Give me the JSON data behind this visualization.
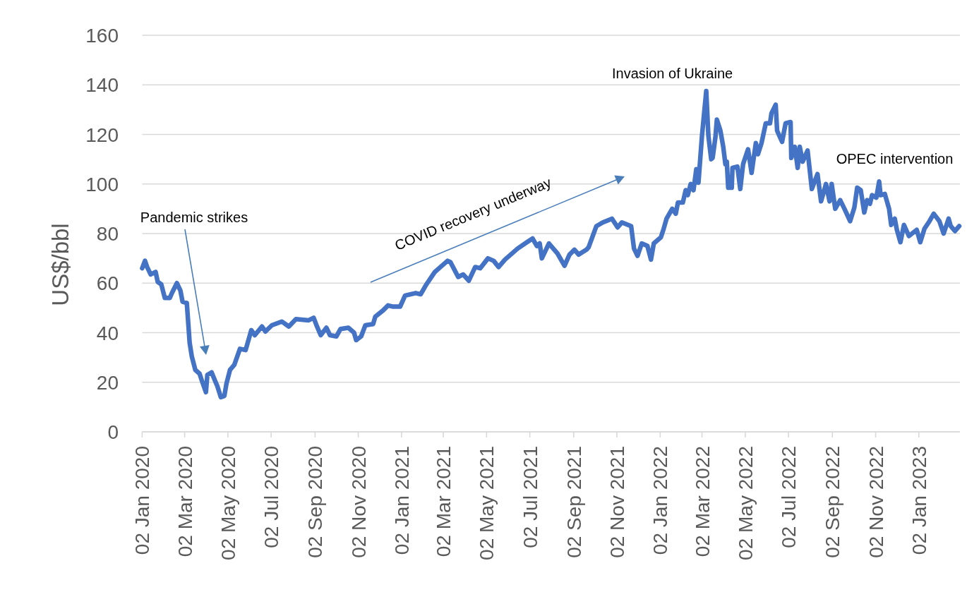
{
  "chart_data": {
    "type": "line",
    "ylabel": "US$/bbl",
    "annotations": [
      "Pandemic strikes",
      "COVID recovery underway",
      {
        "text": "Invasion of Ukraine",
        "x": "2022-03-08",
        "y": 137.5
      },
      {
        "text": "OPEC intervention",
        "x": "2022-11-07",
        "y": 101
      }
    ],
    "x": [
      "2020-01-02",
      "2020-01-06",
      "2020-01-09",
      "2020-01-14",
      "2020-01-21",
      "2020-01-24",
      "2020-01-29",
      "2020-02-03",
      "2020-02-10",
      "2020-02-13",
      "2020-02-20",
      "2020-02-25",
      "2020-02-28",
      "2020-03-05",
      "2020-03-09",
      "2020-03-12",
      "2020-03-17",
      "2020-03-23",
      "2020-03-27",
      "2020-04-01",
      "2020-04-03",
      "2020-04-09",
      "2020-04-14",
      "2020-04-17",
      "2020-04-22",
      "2020-04-27",
      "2020-04-30",
      "2020-05-05",
      "2020-05-11",
      "2020-05-19",
      "2020-05-27",
      "2020-06-04",
      "2020-06-09",
      "2020-06-19",
      "2020-06-24",
      "2020-07-03",
      "2020-07-17",
      "2020-07-27",
      "2020-08-06",
      "2020-08-24",
      "2020-08-31",
      "2020-09-04",
      "2020-09-10",
      "2020-09-18",
      "2020-09-23",
      "2020-10-02",
      "2020-10-08",
      "2020-10-19",
      "2020-10-27",
      "2020-10-30",
      "2020-11-06",
      "2020-11-12",
      "2020-11-23",
      "2020-11-26",
      "2020-12-07",
      "2020-12-14",
      "2020-12-21",
      "2020-12-31",
      "2021-01-07",
      "2021-01-22",
      "2021-01-29",
      "2021-02-05",
      "2021-02-18",
      "2021-02-26",
      "2021-03-08",
      "2021-03-12",
      "2021-03-23",
      "2021-03-30",
      "2021-04-07",
      "2021-04-16",
      "2021-04-23",
      "2021-05-04",
      "2021-05-12",
      "2021-05-19",
      "2021-05-28",
      "2021-06-15",
      "2021-06-28",
      "2021-07-06",
      "2021-07-12",
      "2021-07-16",
      "2021-07-19",
      "2021-07-29",
      "2021-08-10",
      "2021-08-20",
      "2021-08-27",
      "2021-09-03",
      "2021-09-09",
      "2021-09-20",
      "2021-09-23",
      "2021-10-04",
      "2021-10-13",
      "2021-10-26",
      "2021-11-03",
      "2021-11-09",
      "2021-11-22",
      "2021-11-26",
      "2021-12-01",
      "2021-12-07",
      "2021-12-15",
      "2021-12-20",
      "2021-12-24",
      "2022-01-03",
      "2022-01-07",
      "2022-01-11",
      "2022-01-19",
      "2022-01-24",
      "2022-01-27",
      "2022-02-03",
      "2022-02-07",
      "2022-02-10",
      "2022-02-14",
      "2022-02-18",
      "2022-02-22",
      "2022-02-25",
      "2022-03-02",
      "2022-03-08",
      "2022-03-11",
      "2022-03-15",
      "2022-03-17",
      "2022-03-21",
      "2022-03-23",
      "2022-03-28",
      "2022-04-01",
      "2022-04-04",
      "2022-04-06",
      "2022-04-08",
      "2022-04-13",
      "2022-04-14",
      "2022-04-21",
      "2022-04-25",
      "2022-04-29",
      "2022-05-06",
      "2022-05-11",
      "2022-05-17",
      "2022-05-20",
      "2022-05-25",
      "2022-05-31",
      "2022-06-06",
      "2022-06-08",
      "2022-06-14",
      "2022-06-16",
      "2022-06-23",
      "2022-06-28",
      "2022-07-05",
      "2022-07-06",
      "2022-07-11",
      "2022-07-15",
      "2022-07-18",
      "2022-07-22",
      "2022-07-29",
      "2022-08-04",
      "2022-08-12",
      "2022-08-17",
      "2022-08-24",
      "2022-08-29",
      "2022-09-01",
      "2022-09-06",
      "2022-09-13",
      "2022-09-19",
      "2022-09-27",
      "2022-10-03",
      "2022-10-07",
      "2022-10-12",
      "2022-10-17",
      "2022-10-21",
      "2022-10-25",
      "2022-10-28",
      "2022-11-03",
      "2022-11-07",
      "2022-11-09",
      "2022-11-15",
      "2022-11-21",
      "2022-11-24",
      "2022-11-29",
      "2022-12-02",
      "2022-12-07",
      "2022-12-12",
      "2022-12-19",
      "2022-12-30",
      "2023-01-04",
      "2023-01-10",
      "2023-01-17",
      "2023-01-23",
      "2023-01-31",
      "2023-02-06",
      "2023-02-13",
      "2023-02-16",
      "2023-02-22",
      "2023-02-28"
    ],
    "values": [
      66,
      69,
      66.5,
      63.5,
      64.5,
      60.5,
      59.5,
      54,
      54,
      56,
      60,
      57,
      52.5,
      52,
      36,
      30.5,
      25,
      23.5,
      20,
      16,
      23,
      24,
      20.5,
      18.5,
      14,
      14.5,
      19.5,
      25,
      27,
      33.5,
      33,
      41,
      39,
      42.5,
      40.5,
      43,
      44.5,
      42.5,
      45.5,
      45,
      46,
      43,
      39,
      42,
      39,
      38.5,
      41.5,
      42,
      40,
      37,
      38.5,
      43,
      43.5,
      46.5,
      49,
      51,
      50.5,
      50.5,
      55,
      56,
      55.5,
      59,
      64.5,
      66.5,
      69,
      68.5,
      62.5,
      63.5,
      61,
      66.5,
      66,
      70,
      69,
      66.5,
      69.5,
      74,
      76.5,
      78,
      75,
      76,
      70,
      76,
      72,
      67,
      71.5,
      73.5,
      71.5,
      73.5,
      74.5,
      83,
      84.5,
      86,
      82.5,
      84.5,
      83,
      74,
      71,
      76,
      75,
      69.5,
      76,
      78.5,
      82,
      86,
      90,
      88,
      92.5,
      92.5,
      97.5,
      95.5,
      100,
      97.5,
      106,
      100.5,
      119.5,
      137.5,
      119.5,
      110,
      110.5,
      119,
      126,
      121.5,
      115,
      108,
      109,
      98.5,
      98.5,
      106.5,
      107,
      98,
      108,
      114,
      104.5,
      116.5,
      112,
      116.5,
      124.5,
      124.5,
      128.5,
      132,
      121.5,
      117,
      124.5,
      125,
      110.5,
      115,
      106.5,
      115,
      109,
      113.5,
      98,
      104,
      93,
      100,
      93,
      100,
      90,
      93.5,
      90,
      85,
      90.5,
      98.5,
      97.5,
      88.5,
      93.5,
      92,
      95.5,
      94.5,
      101,
      95.5,
      96,
      90,
      83.5,
      86,
      81.5,
      76.5,
      83.5,
      79,
      81.5,
      76.5,
      82,
      85,
      88,
      85,
      80,
      86,
      83,
      81,
      83
    ],
    "color": "#4472c4",
    "xlim": [
      "2020-01-02",
      "2023-03-01"
    ],
    "xticks": [
      {
        "value": "2020-01-02",
        "label": "02 Jan 2020"
      },
      {
        "value": "2020-03-02",
        "label": "02 Mar 2020"
      },
      {
        "value": "2020-05-02",
        "label": "02 May 2020"
      },
      {
        "value": "2020-07-02",
        "label": "02 Jul 2020"
      },
      {
        "value": "2020-09-02",
        "label": "02 Sep 2020"
      },
      {
        "value": "2020-11-02",
        "label": "02 Nov 2020"
      },
      {
        "value": "2021-01-02",
        "label": "02 Jan 2021"
      },
      {
        "value": "2021-03-02",
        "label": "02 Mar 2021"
      },
      {
        "value": "2021-05-02",
        "label": "02 May 2021"
      },
      {
        "value": "2021-07-02",
        "label": "02 Jul 2021"
      },
      {
        "value": "2021-09-02",
        "label": "02 Sep 2021"
      },
      {
        "value": "2021-11-02",
        "label": "02 Nov 2021"
      },
      {
        "value": "2022-01-02",
        "label": "02 Jan 2022"
      },
      {
        "value": "2022-03-02",
        "label": "02 Mar 2022"
      },
      {
        "value": "2022-05-02",
        "label": "02 May 2022"
      },
      {
        "value": "2022-07-02",
        "label": "02 Jul 2022"
      },
      {
        "value": "2022-09-02",
        "label": "02 Sep 2022"
      },
      {
        "value": "2022-11-02",
        "label": "02 Nov 2022"
      },
      {
        "value": "2023-01-02",
        "label": "02 Jan 2023"
      }
    ],
    "ylim": [
      0,
      160
    ],
    "yticks": [
      0,
      20,
      40,
      60,
      80,
      100,
      120,
      140,
      160
    ],
    "grid": "y"
  }
}
